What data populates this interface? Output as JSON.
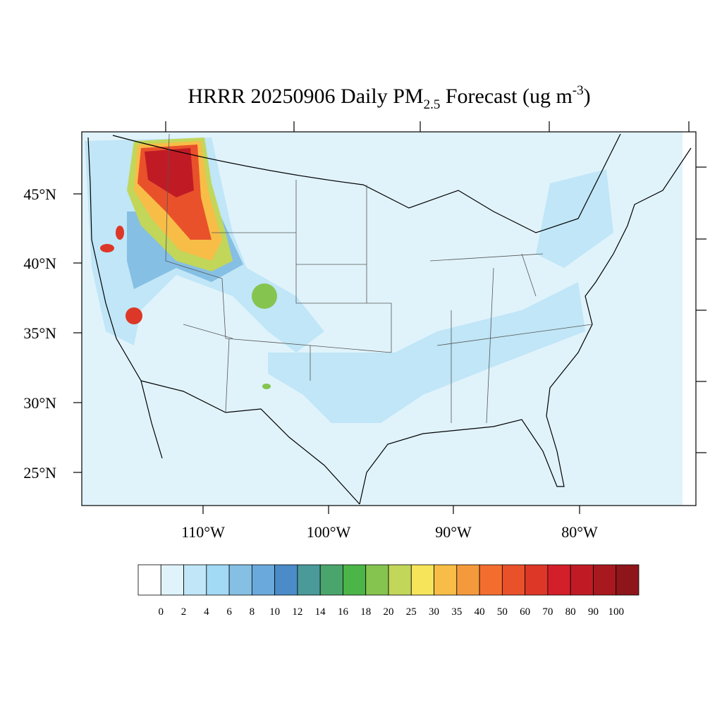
{
  "title": {
    "main": "HRRR 20250906 Daily PM",
    "subscript": "2.5",
    "middle": " Forecast (ug m",
    "superscript": "-3",
    "end": ")"
  },
  "map": {
    "lat_labels": [
      "45°N",
      "40°N",
      "35°N",
      "30°N",
      "25°N"
    ],
    "lon_labels": [
      "110°W",
      "100°W",
      "90°W",
      "80°W"
    ]
  },
  "colorbar": {
    "levels": [
      0,
      2,
      4,
      6,
      8,
      10,
      12,
      14,
      16,
      18,
      20,
      25,
      30,
      35,
      40,
      50,
      60,
      70,
      80,
      90,
      100
    ],
    "colors": [
      "#ffffff",
      "#e0f3fb",
      "#c0e6f7",
      "#a2d9f5",
      "#85bfe4",
      "#6aa9dc",
      "#4a8bc8",
      "#4a9a9a",
      "#4aa56c",
      "#4bb548",
      "#85c44f",
      "#c2d65a",
      "#f6e45a",
      "#f7bd47",
      "#f59a3c",
      "#f36d2e",
      "#e9512b",
      "#dd3727",
      "#d31f2a",
      "#c01b25",
      "#a8191f",
      "#8e161b"
    ]
  }
}
